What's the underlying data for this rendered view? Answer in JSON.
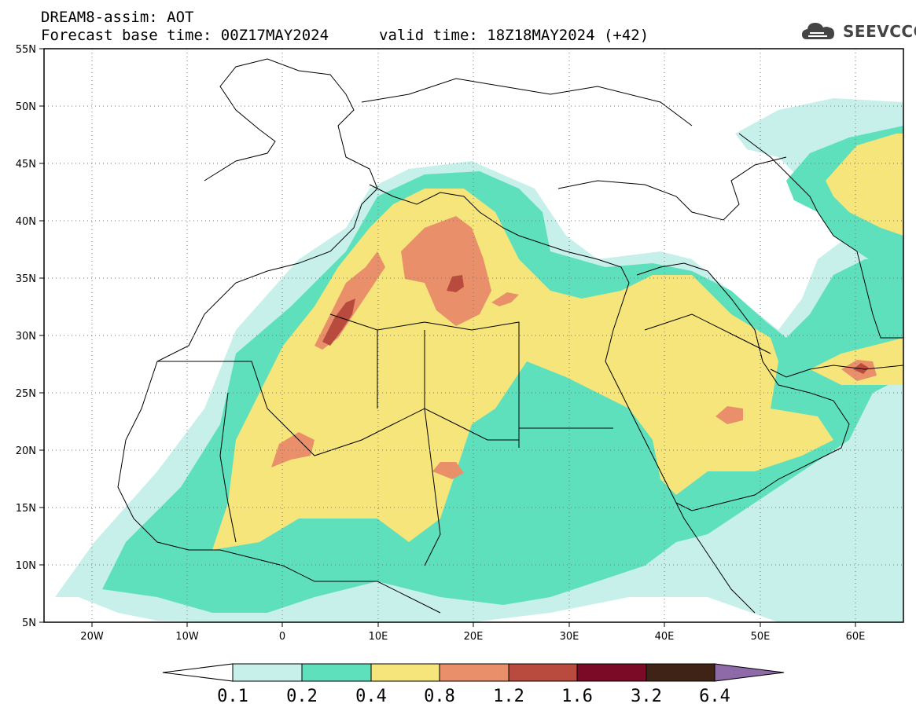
{
  "header": {
    "title": "DREAM8-assim: AOT",
    "base_time": "Forecast base time: 00Z17MAY2024",
    "valid_time": "valid time: 18Z18MAY2024 (+42)"
  },
  "logo": {
    "text": "SEEVCCC",
    "icon": "cloud-icon"
  },
  "map": {
    "lat_labels": [
      "55N",
      "50N",
      "45N",
      "40N",
      "35N",
      "30N",
      "25N",
      "20N",
      "15N",
      "10N",
      "5N"
    ],
    "lon_labels": [
      "20W",
      "10W",
      "0",
      "10E",
      "20E",
      "30E",
      "40E",
      "50E",
      "60E"
    ],
    "lon_range": [
      -25,
      65
    ],
    "lat_range": [
      5,
      55
    ],
    "gridlines": "dotted"
  },
  "colorbar": {
    "labels": [
      "0.1",
      "0.2",
      "0.4",
      "0.8",
      "1.2",
      "1.6",
      "3.2",
      "6.4"
    ],
    "colors": [
      "#ffffff",
      "#c8f0ea",
      "#5ee0bc",
      "#f5e57a",
      "#e9906a",
      "#b84a3e",
      "#7a0a25",
      "#3e2316",
      "#8e6aa8"
    ]
  }
}
